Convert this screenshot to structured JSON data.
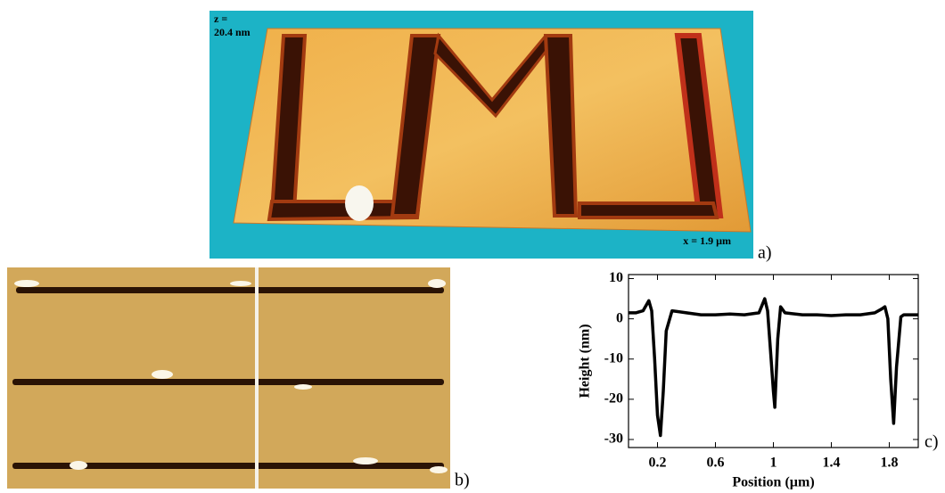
{
  "panels": {
    "a": {
      "label": "a)",
      "z_label": "z =",
      "z_value": "20.4 nm",
      "x_value": "x = 1.9 µm"
    },
    "b": {
      "label": "b)"
    },
    "c": {
      "label": "c)"
    }
  },
  "chart_data": {
    "type": "line",
    "color": "#000000",
    "x_label": "Position (µm)",
    "y_label": "Height (nm)",
    "xlim": [
      0,
      2.0
    ],
    "ylim": [
      -32,
      11
    ],
    "xticks": [
      0.2,
      0.6,
      1,
      1.4,
      1.8
    ],
    "yticks": [
      10,
      0,
      -10,
      -20,
      -30
    ],
    "x": [
      0,
      0.05,
      0.1,
      0.14,
      0.16,
      0.18,
      0.2,
      0.22,
      0.24,
      0.26,
      0.3,
      0.4,
      0.5,
      0.6,
      0.7,
      0.8,
      0.9,
      0.94,
      0.96,
      0.98,
      1.0,
      1.01,
      1.03,
      1.05,
      1.08,
      1.2,
      1.3,
      1.4,
      1.5,
      1.6,
      1.7,
      1.75,
      1.77,
      1.79,
      1.81,
      1.83,
      1.85,
      1.88,
      1.9,
      1.95,
      2.0
    ],
    "values": [
      1.5,
      1.5,
      2,
      4.5,
      2,
      -10,
      -24,
      -29,
      -18,
      -3,
      2,
      1.5,
      1,
      1,
      1.2,
      1,
      1.5,
      5,
      2,
      -8,
      -18,
      -22,
      -5,
      3,
      1.5,
      1,
      1,
      0.8,
      1,
      1,
      1.5,
      2.5,
      3,
      0,
      -15,
      -26,
      -12,
      0.5,
      1,
      1,
      1
    ]
  }
}
